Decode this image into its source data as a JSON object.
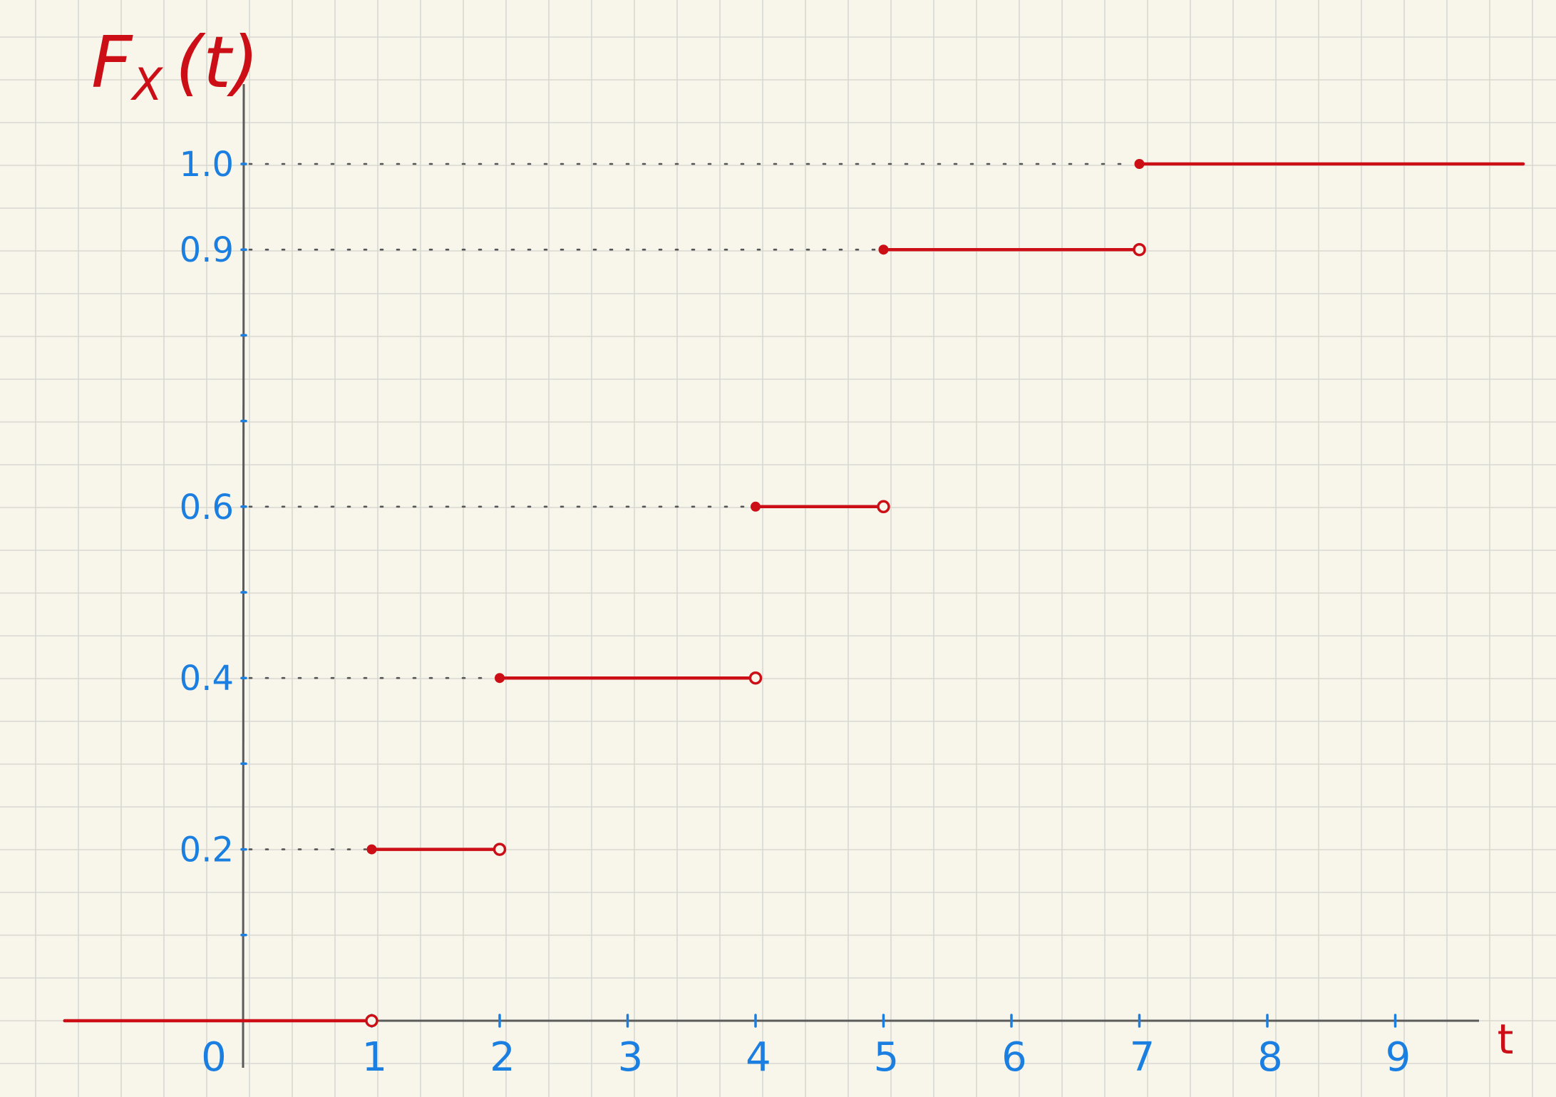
{
  "chart_data": {
    "type": "step",
    "ylabel": "F",
    "ylabel_subscript": "X",
    "ylabel_arg": "(t)",
    "xlabel": "t",
    "x_tick_labels": [
      "0",
      "1",
      "2",
      "3",
      "4",
      "5",
      "6",
      "7",
      "8",
      "9"
    ],
    "x_ticks": [
      0,
      1,
      2,
      3,
      4,
      5,
      6,
      7,
      8,
      9
    ],
    "y_tick_values": [
      0.2,
      0.4,
      0.6,
      0.9,
      1.0
    ],
    "y_tick_labels": [
      "0.2",
      "0.4",
      "0.6",
      "0.9",
      "1.0"
    ],
    "y_minor_ticks": [
      0.1,
      0.3,
      0.5,
      0.7,
      0.8
    ],
    "xlim": [
      -1.4,
      9.6
    ],
    "ylim": [
      -0.05,
      1.08
    ],
    "grid": true,
    "segments": [
      {
        "x_start": -1.4,
        "x_end": 1,
        "y": 0.0,
        "start_closed": null,
        "end_closed": false
      },
      {
        "x_start": 1,
        "x_end": 2,
        "y": 0.2,
        "start_closed": true,
        "end_closed": false
      },
      {
        "x_start": 2,
        "x_end": 4,
        "y": 0.4,
        "start_closed": true,
        "end_closed": false
      },
      {
        "x_start": 4,
        "x_end": 5,
        "y": 0.6,
        "start_closed": true,
        "end_closed": false
      },
      {
        "x_start": 5,
        "x_end": 7,
        "y": 0.9,
        "start_closed": true,
        "end_closed": false
      },
      {
        "x_start": 7,
        "x_end": 10,
        "y": 1.0,
        "start_closed": true,
        "end_closed": null
      }
    ],
    "colors": {
      "background": "#f8f5ea",
      "grid": "#d8d9d3",
      "axis": "#5b5b5b",
      "step": "#cc0f17",
      "tick_label": "#1a7fe0",
      "guide": "#555555"
    }
  }
}
